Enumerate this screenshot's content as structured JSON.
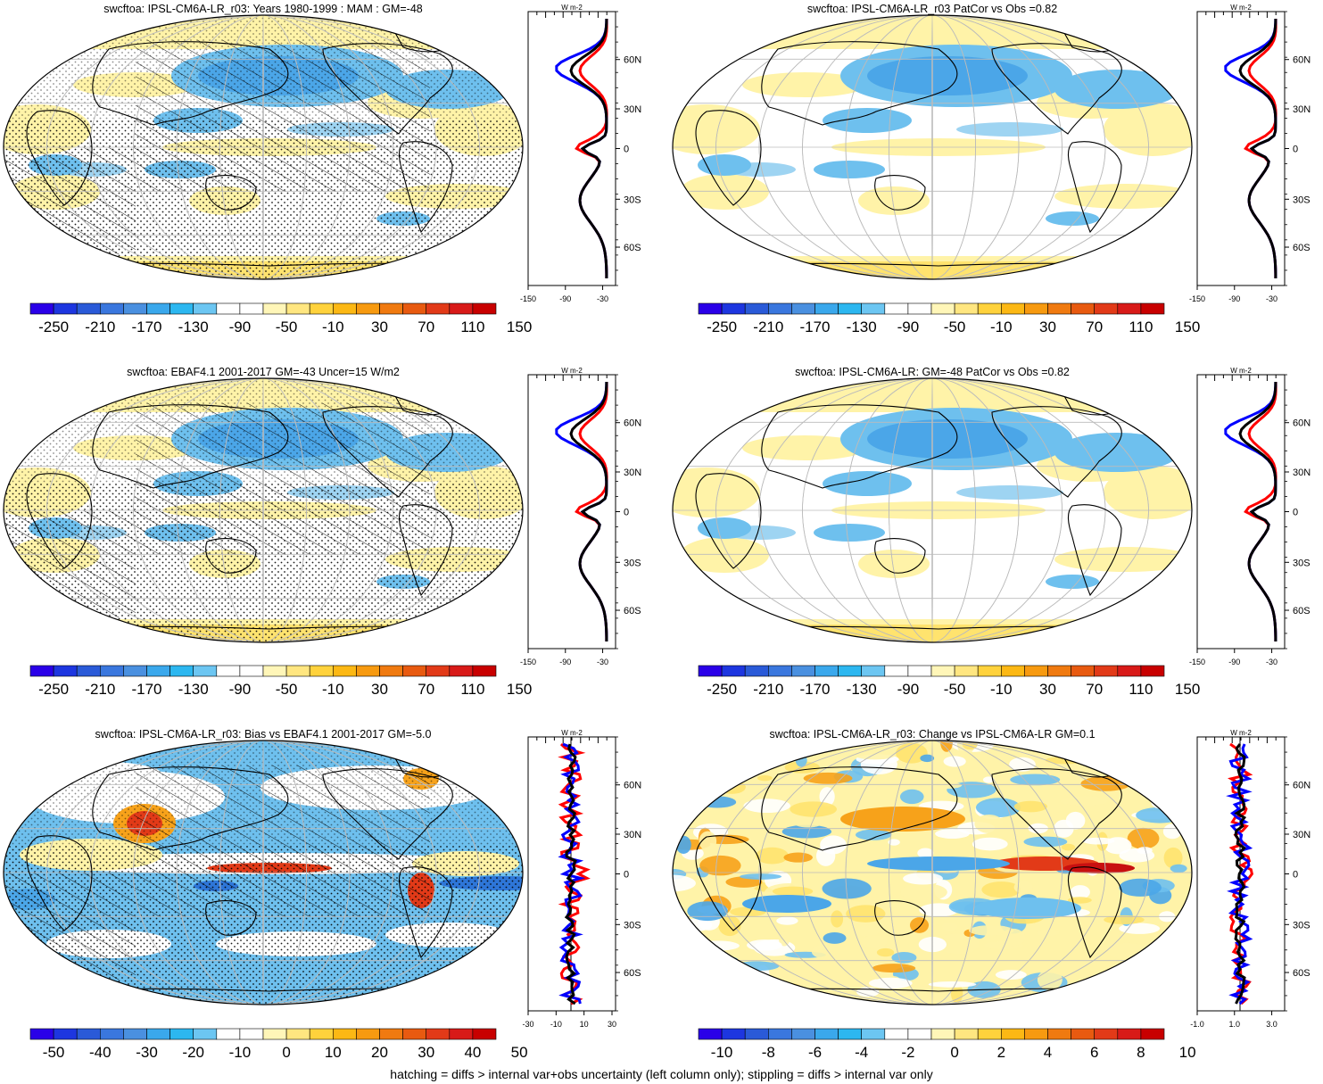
{
  "panels": [
    {
      "title": "swcftoa: IPSL-CM6A-LR_r03: Years 1980-1999 : MAM : GM=-48",
      "colorbar_labels": [
        "-250",
        "-210",
        "-170",
        "-130",
        "-90",
        "-50",
        "-10",
        "30",
        "70",
        "110",
        "150"
      ],
      "colorbar_colors": [
        "#2a00e8",
        "#1d36e0",
        "#2a5ad8",
        "#3a77de",
        "#4a90e0",
        "#3aa8ec",
        "#2cb7f0",
        "#6cc6f2",
        "#ffffff",
        "#ffffff",
        "#fff6b8",
        "#ffe680",
        "#ffd23c",
        "#fcb814",
        "#f79a10",
        "#f07a10",
        "#e85a10",
        "#e23a18",
        "#d81a18",
        "#c80000"
      ],
      "profile_ticks": [
        "-150",
        "-90",
        "-30"
      ],
      "profile_unit": "W m-2",
      "lat_labels": [
        "60N",
        "30N",
        "0",
        "30S",
        "60S"
      ],
      "overlay": "stipple+hatch",
      "palette": "abs"
    },
    {
      "title": "swcftoa: IPSL-CM6A-LR_r03 PatCor vs Obs =0.82",
      "colorbar_labels": [
        "-250",
        "-210",
        "-170",
        "-130",
        "-90",
        "-50",
        "-10",
        "30",
        "70",
        "110",
        "150"
      ],
      "colorbar_colors": [
        "#2a00e8",
        "#1d36e0",
        "#2a5ad8",
        "#3a77de",
        "#4a90e0",
        "#3aa8ec",
        "#2cb7f0",
        "#6cc6f2",
        "#ffffff",
        "#ffffff",
        "#fff6b8",
        "#ffe680",
        "#ffd23c",
        "#fcb814",
        "#f79a10",
        "#f07a10",
        "#e85a10",
        "#e23a18",
        "#d81a18",
        "#c80000"
      ],
      "profile_ticks": [
        "-150",
        "-90",
        "-30"
      ],
      "profile_unit": "W m-2",
      "lat_labels": [
        "60N",
        "30N",
        "0",
        "30S",
        "60S"
      ],
      "overlay": "none",
      "palette": "abs"
    },
    {
      "title": "swcftoa: EBAF4.1 2001-2017 GM=-43 Uncer=15 W/m2",
      "colorbar_labels": [
        "-250",
        "-210",
        "-170",
        "-130",
        "-90",
        "-50",
        "-10",
        "30",
        "70",
        "110",
        "150"
      ],
      "colorbar_colors": [
        "#2a00e8",
        "#1d36e0",
        "#2a5ad8",
        "#3a77de",
        "#4a90e0",
        "#3aa8ec",
        "#2cb7f0",
        "#6cc6f2",
        "#ffffff",
        "#ffffff",
        "#fff6b8",
        "#ffe680",
        "#ffd23c",
        "#fcb814",
        "#f79a10",
        "#f07a10",
        "#e85a10",
        "#e23a18",
        "#d81a18",
        "#c80000"
      ],
      "profile_ticks": [
        "-150",
        "-90",
        "-30"
      ],
      "profile_unit": "W m-2",
      "lat_labels": [
        "60N",
        "30N",
        "0",
        "30S",
        "60S"
      ],
      "overlay": "stipple+hatch",
      "palette": "abs"
    },
    {
      "title": "swcftoa: IPSL-CM6A-LR: GM=-48 PatCor vs Obs =0.82",
      "colorbar_labels": [
        "-250",
        "-210",
        "-170",
        "-130",
        "-90",
        "-50",
        "-10",
        "30",
        "70",
        "110",
        "150"
      ],
      "colorbar_colors": [
        "#2a00e8",
        "#1d36e0",
        "#2a5ad8",
        "#3a77de",
        "#4a90e0",
        "#3aa8ec",
        "#2cb7f0",
        "#6cc6f2",
        "#ffffff",
        "#ffffff",
        "#fff6b8",
        "#ffe680",
        "#ffd23c",
        "#fcb814",
        "#f79a10",
        "#f07a10",
        "#e85a10",
        "#e23a18",
        "#d81a18",
        "#c80000"
      ],
      "profile_ticks": [
        "-150",
        "-90",
        "-30"
      ],
      "profile_unit": "W m-2",
      "lat_labels": [
        "60N",
        "30N",
        "0",
        "30S",
        "60S"
      ],
      "overlay": "none",
      "palette": "abs"
    },
    {
      "title": "swcftoa: IPSL-CM6A-LR_r03: Bias vs EBAF4.1 2001-2017 GM=-5.0",
      "colorbar_labels": [
        "-50",
        "-40",
        "-30",
        "-20",
        "-10",
        "0",
        "10",
        "20",
        "30",
        "40",
        "50"
      ],
      "colorbar_colors": [
        "#2a00e8",
        "#1d36e0",
        "#2a5ad8",
        "#3a77de",
        "#4a90e0",
        "#3aa8ec",
        "#2cb7f0",
        "#6cc6f2",
        "#ffffff",
        "#ffffff",
        "#fff6b8",
        "#ffe680",
        "#ffd23c",
        "#fcb814",
        "#f79a10",
        "#f07a10",
        "#e85a10",
        "#e23a18",
        "#d81a18",
        "#c80000"
      ],
      "profile_ticks": [
        "-30",
        "-10",
        "10",
        "30"
      ],
      "profile_unit": "W m-2",
      "lat_labels": [
        "60N",
        "30N",
        "0",
        "30S",
        "60S"
      ],
      "overlay": "stipple+hatch",
      "palette": "bias"
    },
    {
      "title": "swcftoa: IPSL-CM6A-LR_r03: Change vs IPSL-CM6A-LR GM=0.1",
      "colorbar_labels": [
        "-10",
        "-8",
        "-6",
        "-4",
        "-2",
        "0",
        "2",
        "4",
        "6",
        "8",
        "10"
      ],
      "colorbar_colors": [
        "#2a00e8",
        "#1d36e0",
        "#2a5ad8",
        "#3a77de",
        "#4a90e0",
        "#3aa8ec",
        "#2cb7f0",
        "#6cc6f2",
        "#ffffff",
        "#ffffff",
        "#fff6b8",
        "#ffe680",
        "#ffd23c",
        "#fcb814",
        "#f79a10",
        "#f07a10",
        "#e85a10",
        "#e23a18",
        "#d81a18",
        "#c80000"
      ],
      "profile_ticks": [
        "-1.0",
        "1.0",
        "3.0"
      ],
      "profile_unit": "W m-2",
      "lat_labels": [
        "60N",
        "30N",
        "0",
        "30S",
        "60S"
      ],
      "overlay": "none",
      "palette": "change"
    }
  ],
  "profile_line_colors": [
    "#ff0000",
    "#0000ff",
    "#000000"
  ],
  "footnote": "hatching = diffs > internal var+obs uncertainty (left column only); stippling = diffs > internal var only"
}
